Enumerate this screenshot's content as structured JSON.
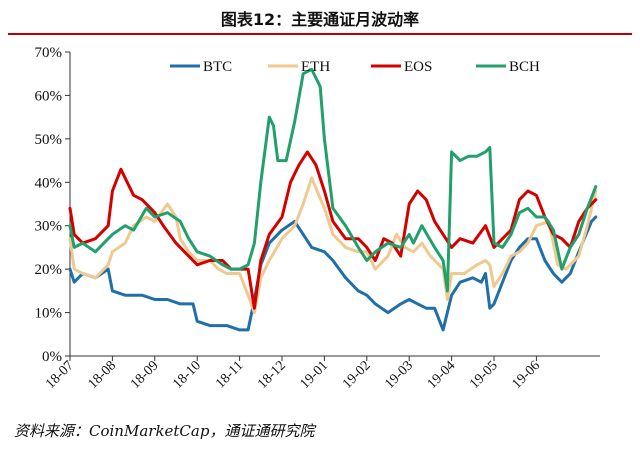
{
  "title": "图表12：主要通证月波动率",
  "source": "资料来源：CoinMarketCap，通证通研究院",
  "chart_data": {
    "type": "line",
    "ylim": [
      0,
      70
    ],
    "y_ticks": [
      "0%",
      "10%",
      "20%",
      "30%",
      "40%",
      "50%",
      "60%",
      "70%"
    ],
    "x_ticks": [
      "18-07",
      "18-08",
      "18-09",
      "18-10",
      "18-11",
      "18-12",
      "19-01",
      "19-02",
      "19-03",
      "19-04",
      "19-05",
      "19-06"
    ],
    "x_range": [
      0,
      12.5
    ],
    "legend_position": "top",
    "series": [
      {
        "name": "BTC",
        "color": "#1f6fa8",
        "x": [
          0,
          0.1,
          0.3,
          0.6,
          0.9,
          1.0,
          1.3,
          1.7,
          2.0,
          2.3,
          2.6,
          2.9,
          3.0,
          3.3,
          3.7,
          4.0,
          4.2,
          4.35,
          4.5,
          4.7,
          5.0,
          5.3,
          5.5,
          5.7,
          6.0,
          6.2,
          6.5,
          6.8,
          7.0,
          7.2,
          7.5,
          7.8,
          8.0,
          8.2,
          8.4,
          8.6,
          8.8,
          9.0,
          9.2,
          9.5,
          9.7,
          9.8,
          9.9,
          10.0,
          10.2,
          10.4,
          10.6,
          10.8,
          11.0,
          11.2,
          11.4,
          11.6,
          11.8,
          12.0,
          12.3,
          12.4
        ],
        "values": [
          20,
          17,
          19,
          18,
          20,
          15,
          14,
          14,
          13,
          13,
          12,
          12,
          8,
          7,
          7,
          6,
          6,
          13,
          21,
          26,
          29,
          31,
          28,
          25,
          24,
          22,
          18,
          15,
          14,
          12,
          10,
          12,
          13,
          12,
          11,
          11,
          6,
          14,
          17,
          18,
          17,
          19,
          11,
          12,
          17,
          22,
          25,
          27,
          27,
          22,
          19,
          17,
          19,
          24,
          31,
          32
        ]
      },
      {
        "name": "ETH",
        "color": "#efc98f",
        "x": [
          0,
          0.1,
          0.3,
          0.6,
          0.9,
          1.0,
          1.3,
          1.5,
          1.8,
          2.0,
          2.3,
          2.5,
          2.6,
          2.8,
          3.0,
          3.3,
          3.5,
          3.7,
          4.0,
          4.2,
          4.35,
          4.5,
          4.7,
          5.0,
          5.3,
          5.5,
          5.7,
          6.0,
          6.2,
          6.5,
          6.8,
          7.0,
          7.2,
          7.5,
          7.7,
          7.9,
          8.1,
          8.3,
          8.5,
          8.8,
          8.9,
          9.0,
          9.3,
          9.6,
          9.8,
          9.9,
          10.0,
          10.2,
          10.4,
          10.6,
          10.8,
          11.0,
          11.3,
          11.5,
          11.7,
          12.0,
          12.2,
          12.4
        ],
        "values": [
          27,
          20,
          19,
          18,
          21,
          24,
          26,
          30,
          32,
          31,
          35,
          32,
          27,
          24,
          22,
          22,
          20,
          19,
          19,
          14,
          10,
          18,
          22,
          27,
          30,
          35,
          41,
          34,
          28,
          25,
          24,
          24,
          20,
          23,
          28,
          25,
          24,
          26,
          23,
          20,
          13,
          19,
          19,
          21,
          22,
          21,
          16,
          19,
          23,
          24,
          26,
          30,
          31,
          21,
          20,
          23,
          30,
          38
        ]
      },
      {
        "name": "EOS",
        "color": "#d40000",
        "x": [
          0,
          0.1,
          0.3,
          0.6,
          0.9,
          1.0,
          1.2,
          1.5,
          1.7,
          2.0,
          2.2,
          2.5,
          2.7,
          2.9,
          3.0,
          3.3,
          3.6,
          3.8,
          4.0,
          4.2,
          4.35,
          4.5,
          4.7,
          5.0,
          5.2,
          5.4,
          5.6,
          5.8,
          6.0,
          6.2,
          6.5,
          6.8,
          7.0,
          7.2,
          7.4,
          7.6,
          7.8,
          8.0,
          8.2,
          8.4,
          8.6,
          8.8,
          9.0,
          9.2,
          9.5,
          9.8,
          10.0,
          10.2,
          10.4,
          10.6,
          10.8,
          11.0,
          11.2,
          11.4,
          11.6,
          11.8,
          12.0,
          12.2,
          12.4
        ],
        "values": [
          34,
          28,
          26,
          27,
          30,
          38,
          43,
          37,
          36,
          33,
          30,
          26,
          24,
          22,
          21,
          22,
          22,
          20,
          20,
          20,
          11,
          22,
          28,
          32,
          40,
          44,
          47,
          44,
          38,
          31,
          27,
          27,
          25,
          22,
          27,
          26,
          23,
          35,
          38,
          36,
          31,
          28,
          25,
          27,
          26,
          30,
          25,
          27,
          29,
          36,
          38,
          37,
          32,
          28,
          27,
          25,
          31,
          34,
          36
        ]
      },
      {
        "name": "BCH",
        "color": "#22a06b",
        "x": [
          0,
          0.1,
          0.3,
          0.6,
          0.9,
          1.0,
          1.3,
          1.5,
          1.8,
          2.0,
          2.3,
          2.6,
          2.8,
          3.0,
          3.3,
          3.6,
          3.8,
          4.0,
          4.2,
          4.35,
          4.5,
          4.7,
          4.8,
          4.9,
          5.1,
          5.3,
          5.5,
          5.7,
          5.9,
          6.0,
          6.2,
          6.5,
          6.8,
          7.0,
          7.2,
          7.5,
          7.8,
          8.0,
          8.1,
          8.3,
          8.6,
          8.8,
          8.9,
          9.0,
          9.2,
          9.4,
          9.6,
          9.8,
          9.9,
          10.0,
          10.2,
          10.4,
          10.6,
          10.8,
          11.0,
          11.2,
          11.4,
          11.6,
          11.8,
          12.0,
          12.2,
          12.4
        ],
        "values": [
          30,
          25,
          26,
          24,
          27,
          28,
          30,
          29,
          34,
          32,
          33,
          31,
          27,
          24,
          23,
          21,
          20,
          20,
          21,
          26,
          40,
          55,
          53,
          45,
          45,
          54,
          65,
          66,
          62,
          50,
          34,
          30,
          25,
          22,
          24,
          26,
          25,
          28,
          26,
          30,
          25,
          22,
          15,
          47,
          45,
          46,
          46,
          47,
          48,
          26,
          25,
          28,
          33,
          34,
          32,
          32,
          29,
          20,
          25,
          28,
          34,
          39
        ]
      }
    ]
  }
}
